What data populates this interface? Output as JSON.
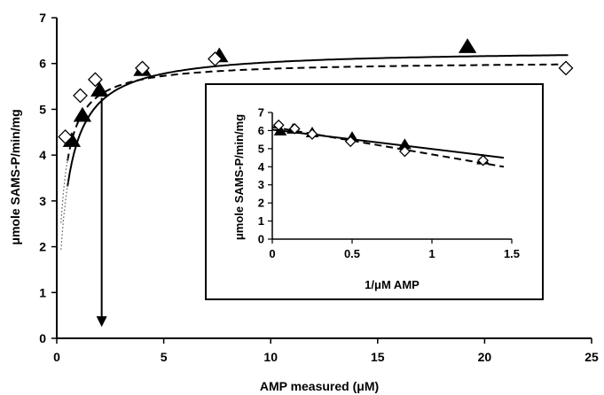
{
  "chart_data": [
    {
      "type": "scatter",
      "title": "",
      "xlabel": "AMP measured (μM)",
      "ylabel": "μmole SAMS-P/min/mg",
      "xlim": [
        0,
        25
      ],
      "ylim": [
        0,
        7
      ],
      "xticks": [
        0,
        5,
        10,
        15,
        20,
        25
      ],
      "yticks": [
        0,
        1,
        2,
        3,
        4,
        5,
        6,
        7
      ],
      "grid": false,
      "legend": "none",
      "series": [
        {
          "marker": "filled-triangle",
          "x": [
            0.7,
            1.2,
            2.0,
            4.0,
            7.6,
            19.2
          ],
          "y": [
            4.3,
            4.85,
            5.4,
            5.85,
            6.15,
            6.35
          ]
        },
        {
          "marker": "open-diamond",
          "x": [
            0.4,
            1.1,
            1.8,
            4.0,
            7.4,
            23.8
          ],
          "y": [
            4.4,
            5.3,
            5.65,
            5.9,
            6.1,
            5.9
          ]
        }
      ],
      "fit_lines": [
        {
          "style": "solid",
          "vmax": 6.3,
          "k": 0.45
        },
        {
          "style": "dashed",
          "vmax": 6.05,
          "k": 0.28
        }
      ],
      "annotations": [
        {
          "type": "arrow",
          "x": 2.1,
          "y_from": 5.25,
          "y_to": 0.25,
          "direction": "down"
        }
      ],
      "colors": {
        "markers": "#000000",
        "marker_fill_open": "#ffffff"
      }
    },
    {
      "type": "scatter",
      "title": "",
      "xlabel": "1/μM AMP",
      "ylabel": "μmole SAMS-P/min/mg",
      "xlim": [
        0,
        1.5
      ],
      "ylim": [
        0,
        7
      ],
      "xticks": [
        "0",
        "0.5",
        "1",
        "1.5"
      ],
      "yticks": [
        0,
        1,
        2,
        3,
        4,
        5,
        6,
        7
      ],
      "grid": false,
      "legend": "none",
      "series": [
        {
          "marker": "filled-triangle",
          "x": [
            0.05,
            0.13,
            0.25,
            0.5,
            0.83,
            1.32
          ],
          "y": [
            5.95,
            6.05,
            5.85,
            5.6,
            5.2,
            4.35
          ]
        },
        {
          "marker": "open-diamond",
          "x": [
            0.04,
            0.14,
            0.25,
            0.49,
            0.83,
            1.32
          ],
          "y": [
            6.3,
            6.1,
            5.8,
            5.4,
            4.85,
            4.35
          ]
        }
      ],
      "fit_lines": [
        {
          "style": "solid",
          "x": [
            0,
            1.45
          ],
          "y": [
            6.05,
            4.5
          ]
        },
        {
          "style": "dashed",
          "x": [
            0,
            1.45
          ],
          "y": [
            6.2,
            4.0
          ]
        }
      ]
    }
  ]
}
